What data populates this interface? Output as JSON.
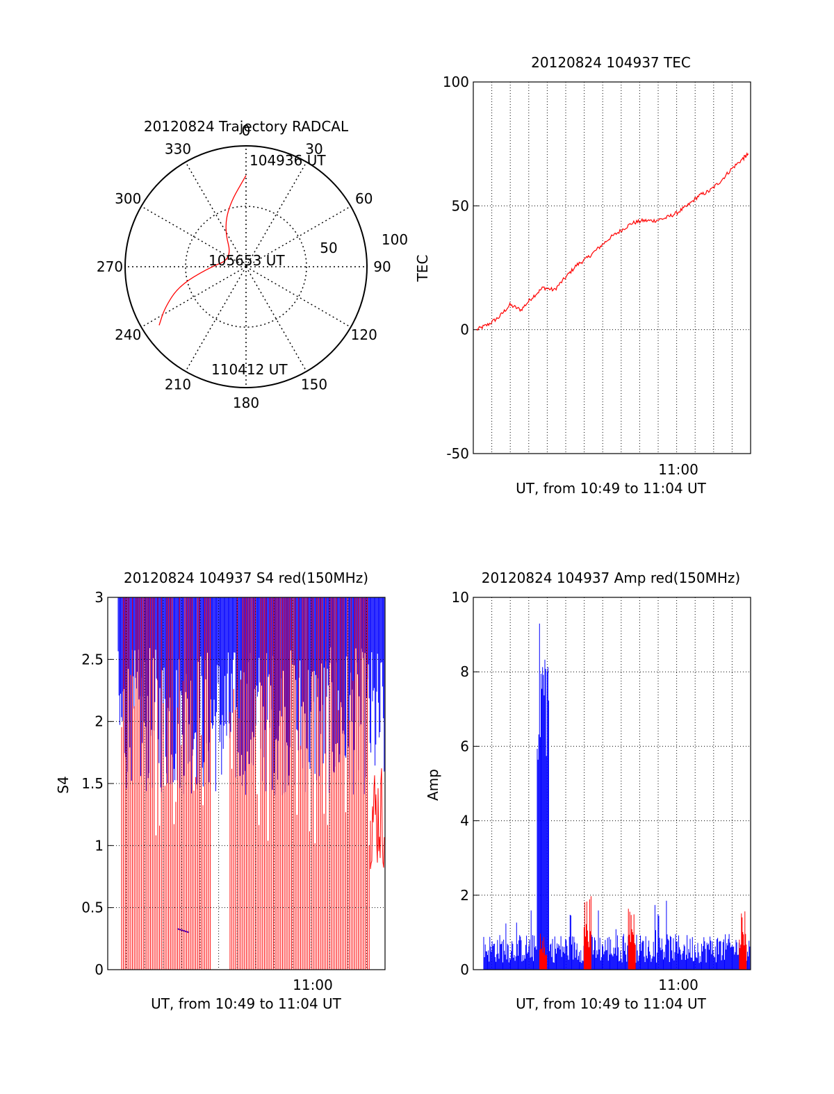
{
  "colors": {
    "red": "#ff0000",
    "blue": "#0000ff",
    "axis": "#000000",
    "grid": "#000000"
  },
  "chart_data": [
    {
      "id": "trajectory",
      "type": "polar",
      "title": "20120824 Trajectory RADCAL",
      "angle_ticks": [
        0,
        30,
        60,
        90,
        120,
        150,
        180,
        210,
        240,
        270,
        300,
        330
      ],
      "radial_ticks": [
        "50",
        "100"
      ],
      "grid": true,
      "series": [
        {
          "color": "red",
          "points_az_el": [
            [
              0,
              22
            ],
            [
              345,
              42
            ],
            [
              330,
              58
            ],
            [
              300,
              78
            ],
            [
              268,
              62
            ],
            [
              254,
              38
            ],
            [
              243,
              22
            ],
            [
              236,
              12
            ]
          ]
        }
      ],
      "annotations": [
        "104936 UT",
        "105653 UT",
        "110412 UT"
      ]
    },
    {
      "id": "tec",
      "type": "line",
      "title": "20120824 104937 TEC",
      "ylabel": "TEC",
      "xlabel": "UT, from 10:49 to 11:04 UT",
      "xlim": [
        10.817,
        11.067
      ],
      "ylim": [
        -50,
        100
      ],
      "yticks": [
        "-50",
        "0",
        "50",
        "100"
      ],
      "xticks": [
        "11:00"
      ],
      "grid": true,
      "series": [
        {
          "color": "red",
          "x": [
            10.82,
            10.83,
            10.84,
            10.85,
            10.86,
            10.87,
            10.88,
            10.89,
            10.9,
            10.91,
            10.92,
            10.93,
            10.94,
            10.95,
            10.96,
            10.97,
            10.98,
            10.99,
            11.0,
            11.01,
            11.02,
            11.03,
            11.04,
            11.05,
            11.06,
            11.065
          ],
          "values": [
            0,
            2,
            5,
            10,
            8,
            13,
            17,
            16,
            21,
            26,
            29,
            33,
            37,
            40,
            43,
            44,
            44,
            45,
            47,
            50,
            54,
            56,
            60,
            65,
            69,
            71
          ]
        }
      ]
    },
    {
      "id": "s4",
      "type": "line",
      "title": "20120824 104937 S4 red(150MHz)",
      "ylabel": "S4",
      "xlabel": "UT, from 10:49 to 11:04 UT",
      "xlim": [
        10.817,
        11.067
      ],
      "ylim": [
        0,
        3
      ],
      "yticks": [
        "0",
        "0.5",
        "1",
        "1.5",
        "2",
        "2.5",
        "3"
      ],
      "xticks": [
        "11:00"
      ],
      "grid": true,
      "series": [
        {
          "color": "blue",
          "description_values": "saturated near 3, dropping to 1.5 and 0"
        },
        {
          "color": "red",
          "description_values": "spikes between 0 and 3"
        }
      ]
    },
    {
      "id": "amp",
      "type": "line",
      "title": "20120824 104937 Amp red(150MHz)",
      "ylabel": "Amp",
      "xlabel": "UT, from 10:49 to 11:04 UT",
      "xlim": [
        10.817,
        11.067
      ],
      "ylim": [
        0,
        10
      ],
      "yticks": [
        "0",
        "2",
        "4",
        "6",
        "8",
        "10"
      ],
      "xticks": [
        "11:00"
      ],
      "grid": true,
      "series": [
        {
          "color": "blue",
          "baseline": 0.6,
          "peak": 9.4,
          "peak_x": 10.88
        },
        {
          "color": "red",
          "peaks": [
            [
              10.88,
              1.0
            ],
            [
              10.92,
              2.0
            ],
            [
              10.96,
              1.8
            ],
            [
              11.06,
              1.7
            ]
          ]
        }
      ]
    }
  ]
}
